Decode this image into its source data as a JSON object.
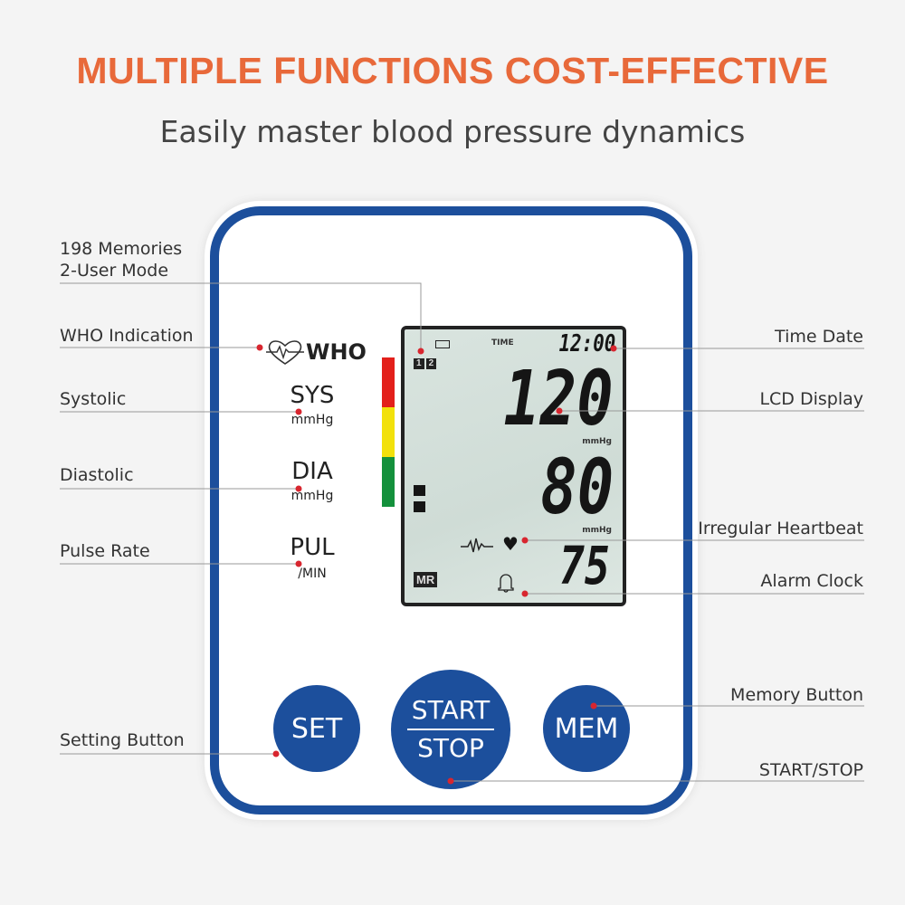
{
  "header": {
    "title": "MULTIPLE FUNCTIONS COST-EFFECTIVE",
    "subtitle": "Easily master blood pressure dynamics"
  },
  "left_labels": {
    "memories": "198 Memories",
    "user_mode": "2-User Mode",
    "who": "WHO Indication",
    "systolic": "Systolic",
    "diastolic": "Diastolic",
    "pulse": "Pulse Rate",
    "set_btn": "Setting Button"
  },
  "right_labels": {
    "time": "Time Date",
    "lcd": "LCD Display",
    "irregular": "Irregular Heartbeat",
    "alarm": "Alarm Clock",
    "memory_btn": "Memory Button",
    "startstop": "START/STOP"
  },
  "panel": {
    "who": "WHO",
    "sys": "SYS",
    "sys_unit": "mmHg",
    "dia": "DIA",
    "dia_unit": "mmHg",
    "pul": "PUL",
    "pul_unit": "/MIN"
  },
  "lcd": {
    "time_label": "TIME",
    "time": "12:00",
    "systolic": "120",
    "sys_unit": "mmHg",
    "diastolic": "80",
    "dia_unit": "mmHg",
    "pulse": "75",
    "mr": "MR",
    "user1": "1",
    "user2": "2"
  },
  "buttons": {
    "set": "SET",
    "start": "START",
    "stop": "STOP",
    "mem": "MEM"
  },
  "colors": {
    "accent": "#e8693a",
    "device_blue": "#1c4f9c",
    "who_red": "#e3201b",
    "who_yellow": "#f2e10c",
    "who_green": "#14913c",
    "callout_dot": "#d8262f"
  }
}
